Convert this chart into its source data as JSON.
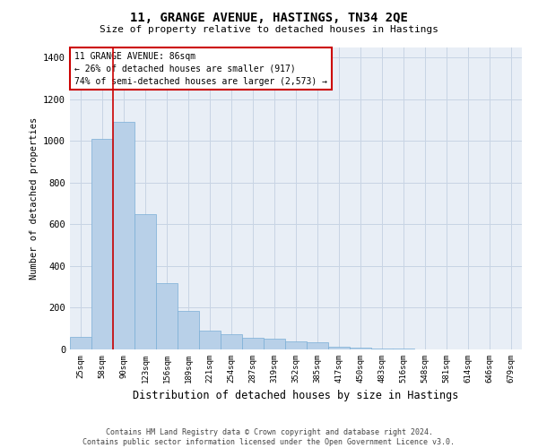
{
  "title": "11, GRANGE AVENUE, HASTINGS, TN34 2QE",
  "subtitle": "Size of property relative to detached houses in Hastings",
  "xlabel": "Distribution of detached houses by size in Hastings",
  "ylabel": "Number of detached properties",
  "footer_line1": "Contains HM Land Registry data © Crown copyright and database right 2024.",
  "footer_line2": "Contains public sector information licensed under the Open Government Licence v3.0.",
  "bin_labels": [
    "25sqm",
    "58sqm",
    "90sqm",
    "123sqm",
    "156sqm",
    "189sqm",
    "221sqm",
    "254sqm",
    "287sqm",
    "319sqm",
    "352sqm",
    "385sqm",
    "417sqm",
    "450sqm",
    "483sqm",
    "516sqm",
    "548sqm",
    "581sqm",
    "614sqm",
    "646sqm",
    "679sqm"
  ],
  "bar_values": [
    60,
    1010,
    1090,
    650,
    320,
    185,
    90,
    75,
    55,
    50,
    40,
    35,
    15,
    8,
    5,
    3,
    2,
    1,
    1,
    0,
    0
  ],
  "bar_color": "#b8d0e8",
  "bar_edgecolor": "#7aaed6",
  "grid_color": "#c8d4e4",
  "background_color": "#e8eef6",
  "annotation_text": "11 GRANGE AVENUE: 86sqm\n← 26% of detached houses are smaller (917)\n74% of semi-detached houses are larger (2,573) →",
  "annotation_box_color": "#ffffff",
  "annotation_box_edgecolor": "#cc0000",
  "vline_x": 1.48,
  "vline_color": "#cc0000",
  "ylim": [
    0,
    1450
  ],
  "yticks": [
    0,
    200,
    400,
    600,
    800,
    1000,
    1200,
    1400
  ]
}
